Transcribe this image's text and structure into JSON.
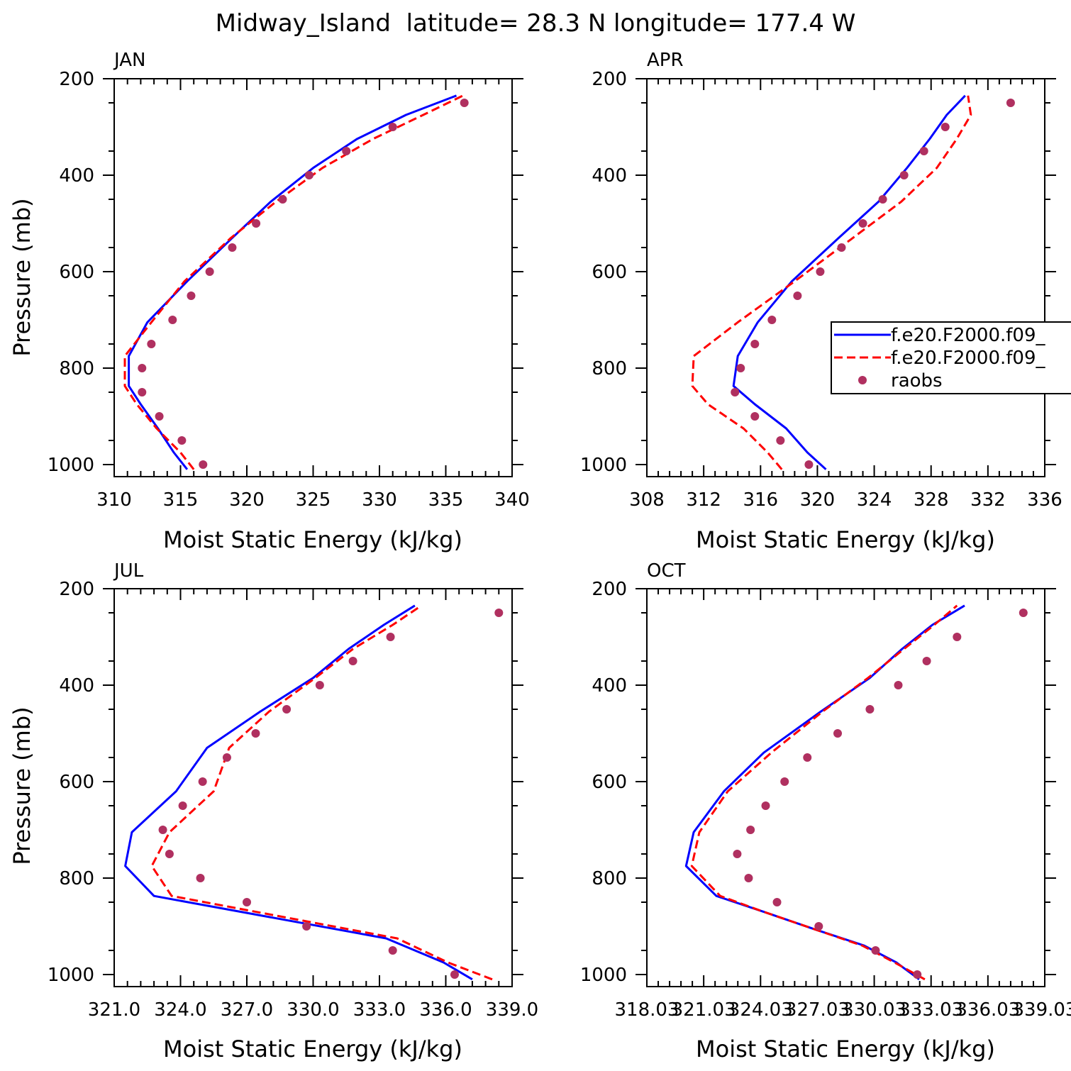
{
  "figure": {
    "title": "Midway_Island  latitude= 28.3 N longitude= 177.4 W"
  },
  "legend": {
    "entries": [
      {
        "label": "f.e20.F2000.f09_",
        "color": "#0000ff",
        "style": "solid"
      },
      {
        "label": "f.e20.F2000.f09_",
        "color": "#ff0000",
        "style": "dashed"
      },
      {
        "label": "raobs",
        "color": "#b03060",
        "style": "marker"
      }
    ]
  },
  "chart_data": [
    {
      "type": "line",
      "panel": "JAN",
      "xlabel": "Moist Static Energy (kJ/kg)",
      "ylabel": "Pressure (mb)",
      "xlim": [
        310,
        340
      ],
      "ylim": [
        1025,
        200
      ],
      "xticks": [
        310,
        315,
        320,
        325,
        330,
        335,
        340
      ],
      "xtick_labels": [
        "310",
        "315",
        "320",
        "325",
        "330",
        "335",
        "340"
      ],
      "yticks": [
        200,
        400,
        600,
        800,
        1000
      ],
      "yminor_step": 50,
      "series": [
        {
          "values": [
            [
              315.5,
              1010
            ],
            [
              314.5,
              975
            ],
            [
              313.3,
              925
            ],
            [
              312,
              875
            ],
            [
              311.1,
              837
            ],
            [
              311.1,
              775
            ],
            [
              312.5,
              705
            ],
            [
              315.5,
              620
            ],
            [
              318.9,
              530
            ],
            [
              321.8,
              455
            ],
            [
              325,
              385
            ],
            [
              328.3,
              325
            ],
            [
              332,
              275
            ],
            [
              335.8,
              235
            ]
          ]
        },
        {
          "values": [
            [
              316,
              1010
            ],
            [
              315,
              975
            ],
            [
              313.2,
              925
            ],
            [
              311.7,
              875
            ],
            [
              310.8,
              837
            ],
            [
              310.8,
              775
            ],
            [
              312.8,
              705
            ],
            [
              315.3,
              620
            ],
            [
              318.8,
              530
            ],
            [
              322.2,
              455
            ],
            [
              325.7,
              385
            ],
            [
              329.5,
              325
            ],
            [
              333.3,
              275
            ],
            [
              336.3,
              235
            ]
          ]
        },
        {
          "values": [
            [
              316.7,
              1000
            ],
            [
              315.1,
              950
            ],
            [
              313.4,
              900
            ],
            [
              312.1,
              850
            ],
            [
              312.1,
              800
            ],
            [
              312.8,
              750
            ],
            [
              314.4,
              700
            ],
            [
              315.8,
              650
            ],
            [
              317.2,
              600
            ],
            [
              318.9,
              550
            ],
            [
              320.7,
              500
            ],
            [
              322.7,
              450
            ],
            [
              324.7,
              400
            ],
            [
              327.5,
              350
            ],
            [
              331,
              300
            ],
            [
              336.4,
              250
            ]
          ]
        }
      ]
    },
    {
      "type": "line",
      "panel": "APR",
      "xlabel": "Moist Static Energy (kJ/kg)",
      "ylabel": "",
      "xlim": [
        308,
        336
      ],
      "ylim": [
        1025,
        200
      ],
      "xticks": [
        308,
        312,
        316,
        320,
        324,
        328,
        332,
        336
      ],
      "xtick_labels": [
        "308",
        "312",
        "316",
        "320",
        "324",
        "328",
        "332",
        "336"
      ],
      "yticks": [
        200,
        400,
        600,
        800,
        1000
      ],
      "yminor_step": 50,
      "series": [
        {
          "values": [
            [
              320.6,
              1010
            ],
            [
              319.3,
              975
            ],
            [
              317.8,
              925
            ],
            [
              315.6,
              875
            ],
            [
              314.1,
              837
            ],
            [
              314.4,
              775
            ],
            [
              315.8,
              705
            ],
            [
              318.2,
              620
            ],
            [
              321.5,
              530
            ],
            [
              324.3,
              455
            ],
            [
              326.3,
              385
            ],
            [
              327.9,
              325
            ],
            [
              329.1,
              275
            ],
            [
              330.4,
              235
            ]
          ]
        },
        {
          "values": [
            [
              317.5,
              1010
            ],
            [
              316.5,
              975
            ],
            [
              314.8,
              925
            ],
            [
              312.3,
              875
            ],
            [
              311.2,
              837
            ],
            [
              311.3,
              775
            ],
            [
              314.4,
              705
            ],
            [
              318.4,
              620
            ],
            [
              322.5,
              530
            ],
            [
              325.9,
              455
            ],
            [
              328.4,
              385
            ],
            [
              329.8,
              325
            ],
            [
              330.8,
              275
            ],
            [
              330.6,
              235
            ]
          ]
        },
        {
          "values": [
            [
              319.4,
              1000
            ],
            [
              317.4,
              950
            ],
            [
              315.6,
              900
            ],
            [
              314.2,
              850
            ],
            [
              314.6,
              800
            ],
            [
              315.6,
              750
            ],
            [
              316.8,
              700
            ],
            [
              318.6,
              650
            ],
            [
              320.2,
              600
            ],
            [
              321.7,
              550
            ],
            [
              323.2,
              500
            ],
            [
              324.6,
              450
            ],
            [
              326.1,
              400
            ],
            [
              327.5,
              350
            ],
            [
              329,
              300
            ],
            [
              333.6,
              250
            ]
          ]
        }
      ]
    },
    {
      "type": "line",
      "panel": "JUL",
      "xlabel": "Moist Static Energy (kJ/kg)",
      "ylabel": "Pressure (mb)",
      "xlim": [
        321,
        339
      ],
      "ylim": [
        1025,
        200
      ],
      "xticks": [
        321,
        324,
        327,
        330,
        333,
        336,
        339
      ],
      "xtick_labels": [
        "321.0",
        "324.0",
        "327.0",
        "330.0",
        "333.0",
        "336.0",
        "339.0"
      ],
      "yticks": [
        200,
        400,
        600,
        800,
        1000
      ],
      "yminor_step": 50,
      "series": [
        {
          "values": [
            [
              337.2,
              1010
            ],
            [
              335.9,
              975
            ],
            [
              333.3,
              925
            ],
            [
              322.8,
              837
            ],
            [
              321.5,
              775
            ],
            [
              321.8,
              705
            ],
            [
              323.8,
              620
            ],
            [
              325.2,
              530
            ],
            [
              327.6,
              455
            ],
            [
              330,
              385
            ],
            [
              331.6,
              325
            ],
            [
              333.2,
              275
            ],
            [
              334.6,
              235
            ]
          ]
        },
        {
          "values": [
            [
              338.1,
              1010
            ],
            [
              336.1,
              975
            ],
            [
              333.8,
              925
            ],
            [
              323.6,
              837
            ],
            [
              322.7,
              775
            ],
            [
              323.5,
              705
            ],
            [
              325.5,
              620
            ],
            [
              326.2,
              530
            ],
            [
              328,
              455
            ],
            [
              330.1,
              385
            ],
            [
              331.8,
              325
            ],
            [
              333.6,
              275
            ],
            [
              334.9,
              235
            ]
          ]
        },
        {
          "values": [
            [
              336.4,
              1000
            ],
            [
              333.6,
              950
            ],
            [
              329.7,
              900
            ],
            [
              327,
              850
            ],
            [
              324.9,
              800
            ],
            [
              323.5,
              750
            ],
            [
              323.2,
              700
            ],
            [
              324.1,
              650
            ],
            [
              325,
              600
            ],
            [
              326.1,
              550
            ],
            [
              327.4,
              500
            ],
            [
              328.8,
              450
            ],
            [
              330.3,
              400
            ],
            [
              331.8,
              350
            ],
            [
              333.5,
              300
            ],
            [
              338.4,
              250
            ]
          ]
        }
      ]
    },
    {
      "type": "line",
      "panel": "OCT",
      "xlabel": "Moist Static Energy (kJ/kg)",
      "ylabel": "",
      "xlim": [
        318.03,
        339.03
      ],
      "ylim": [
        1025,
        200
      ],
      "xticks": [
        318.03,
        321.03,
        324.03,
        327.03,
        330.03,
        333.03,
        336.03,
        339.03
      ],
      "xtick_labels": [
        "318.03",
        "321.03",
        "324.03",
        "327.03",
        "330.03",
        "333.03",
        "336.03",
        "339.03"
      ],
      "yticks": [
        200,
        400,
        600,
        800,
        1000
      ],
      "yminor_step": 50,
      "series": [
        {
          "values": [
            [
              332.4,
              1010
            ],
            [
              331.2,
              975
            ],
            [
              329.5,
              940
            ],
            [
              326.8,
              905
            ],
            [
              324.2,
              870
            ],
            [
              321.7,
              837
            ],
            [
              320.1,
              775
            ],
            [
              320.5,
              705
            ],
            [
              322.1,
              620
            ],
            [
              324.2,
              540
            ],
            [
              327.2,
              455
            ],
            [
              329.8,
              385
            ],
            [
              331.5,
              325
            ],
            [
              333.1,
              275
            ],
            [
              334.8,
              235
            ]
          ]
        },
        {
          "values": [
            [
              332.7,
              1010
            ],
            [
              331.1,
              975
            ],
            [
              329.4,
              940
            ],
            [
              326.8,
              905
            ],
            [
              324.2,
              870
            ],
            [
              321.9,
              837
            ],
            [
              320.4,
              775
            ],
            [
              320.8,
              705
            ],
            [
              322.3,
              620
            ],
            [
              324.6,
              540
            ],
            [
              327.3,
              455
            ],
            [
              329.7,
              385
            ],
            [
              331.6,
              325
            ],
            [
              333.2,
              275
            ],
            [
              334.4,
              235
            ]
          ]
        },
        {
          "values": [
            [
              332.3,
              1000
            ],
            [
              330.1,
              950
            ],
            [
              327.1,
              900
            ],
            [
              324.9,
              850
            ],
            [
              323.4,
              800
            ],
            [
              322.8,
              750
            ],
            [
              323.5,
              700
            ],
            [
              324.3,
              650
            ],
            [
              325.3,
              600
            ],
            [
              326.5,
              550
            ],
            [
              328.1,
              500
            ],
            [
              329.8,
              450
            ],
            [
              331.3,
              400
            ],
            [
              332.8,
              350
            ],
            [
              334.4,
              300
            ],
            [
              337.9,
              250
            ]
          ]
        }
      ]
    }
  ]
}
